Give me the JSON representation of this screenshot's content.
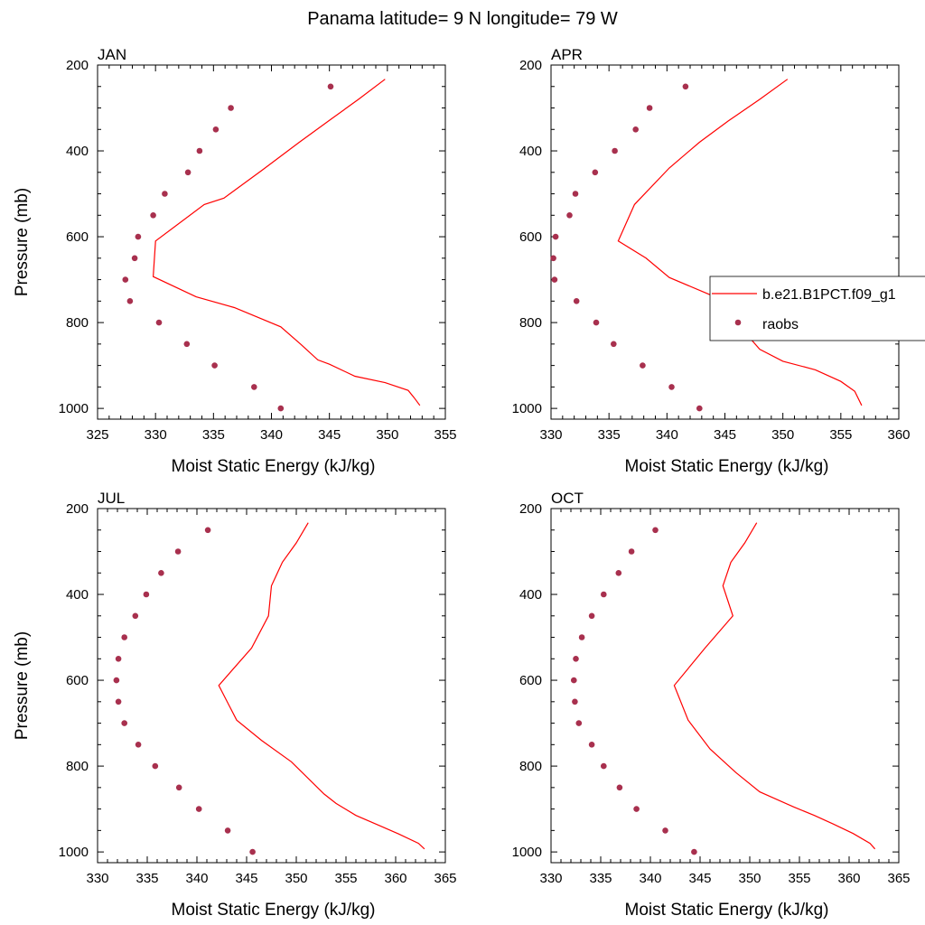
{
  "figure": {
    "title": "Panama  latitude= 9 N longitude= 79 W"
  },
  "legend": {
    "entries": [
      {
        "label": "b.e21.B1PCT.f09_g1",
        "kind": "line",
        "color": "#ff0000"
      },
      {
        "label": "raobs",
        "kind": "marker",
        "color": "#a8304e"
      }
    ]
  },
  "chart_data": [
    {
      "type": "line",
      "panel": "JAN",
      "xlabel": "Moist Static Energy (kJ/kg)",
      "ylabel": "Pressure (mb)",
      "xlim": [
        325,
        355
      ],
      "ylim": [
        200,
        1025
      ],
      "y_inverted": true,
      "xticks": [
        325,
        330,
        335,
        340,
        345,
        350,
        355
      ],
      "yticks": [
        200,
        400,
        600,
        800,
        1000
      ],
      "series": [
        {
          "name": "b.e21.B1PCT.f09_g1",
          "style": "line",
          "color": "#ff0000",
          "points": [
            [
              349.8,
              233
            ],
            [
              347.5,
              280
            ],
            [
              345.2,
              325
            ],
            [
              342.4,
              380
            ],
            [
              339.2,
              445
            ],
            [
              335.9,
              510
            ],
            [
              334.2,
              525
            ],
            [
              330.0,
              610
            ],
            [
              329.8,
              693
            ],
            [
              333.5,
              740
            ],
            [
              336.8,
              765
            ],
            [
              340.8,
              810
            ],
            [
              342.5,
              850
            ],
            [
              344.0,
              887
            ],
            [
              345.0,
              897
            ],
            [
              347.2,
              925
            ],
            [
              349.8,
              940
            ],
            [
              351.8,
              958
            ],
            [
              352.3,
              975
            ],
            [
              352.8,
              993
            ]
          ]
        },
        {
          "name": "raobs",
          "style": "marker",
          "color": "#a8304e",
          "points": [
            [
              345.1,
              250
            ],
            [
              336.5,
              300
            ],
            [
              335.2,
              350
            ],
            [
              333.8,
              400
            ],
            [
              332.8,
              450
            ],
            [
              330.8,
              500
            ],
            [
              329.8,
              550
            ],
            [
              328.5,
              600
            ],
            [
              328.2,
              650
            ],
            [
              327.4,
              700
            ],
            [
              327.8,
              750
            ],
            [
              330.3,
              800
            ],
            [
              332.7,
              850
            ],
            [
              335.1,
              900
            ],
            [
              338.5,
              950
            ],
            [
              340.8,
              1000
            ]
          ]
        }
      ]
    },
    {
      "type": "line",
      "panel": "APR",
      "xlabel": "Moist Static Energy (kJ/kg)",
      "ylabel": "",
      "xlim": [
        330,
        360
      ],
      "ylim": [
        200,
        1025
      ],
      "y_inverted": true,
      "xticks": [
        330,
        335,
        340,
        345,
        350,
        355,
        360
      ],
      "yticks": [
        200,
        400,
        600,
        800,
        1000
      ],
      "series": [
        {
          "name": "b.e21.B1PCT.f09_g1",
          "style": "line",
          "color": "#ff0000",
          "points": [
            [
              350.4,
              233
            ],
            [
              348.0,
              280
            ],
            [
              345.3,
              330
            ],
            [
              342.8,
              380
            ],
            [
              340.2,
              440
            ],
            [
              337.9,
              505
            ],
            [
              337.2,
              525
            ],
            [
              335.8,
              610
            ],
            [
              338.2,
              650
            ],
            [
              340.2,
              695
            ],
            [
              343.7,
              735
            ],
            [
              345.2,
              760
            ],
            [
              346.3,
              810
            ],
            [
              348.0,
              862
            ],
            [
              350.0,
              890
            ],
            [
              352.8,
              910
            ],
            [
              355.0,
              937
            ],
            [
              356.2,
              960
            ],
            [
              356.8,
              993
            ]
          ]
        },
        {
          "name": "raobs",
          "style": "marker",
          "color": "#a8304e",
          "points": [
            [
              341.6,
              250
            ],
            [
              338.5,
              300
            ],
            [
              337.3,
              350
            ],
            [
              335.5,
              400
            ],
            [
              333.8,
              450
            ],
            [
              332.1,
              500
            ],
            [
              331.6,
              550
            ],
            [
              330.4,
              600
            ],
            [
              330.2,
              650
            ],
            [
              330.3,
              700
            ],
            [
              332.2,
              750
            ],
            [
              333.9,
              800
            ],
            [
              335.4,
              850
            ],
            [
              337.9,
              900
            ],
            [
              340.4,
              950
            ],
            [
              342.8,
              1000
            ]
          ]
        }
      ]
    },
    {
      "type": "line",
      "panel": "JUL",
      "xlabel": "Moist Static Energy (kJ/kg)",
      "ylabel": "Pressure (mb)",
      "xlim": [
        330,
        365
      ],
      "ylim": [
        200,
        1025
      ],
      "y_inverted": true,
      "xticks": [
        330,
        335,
        340,
        345,
        350,
        355,
        360,
        365
      ],
      "yticks": [
        200,
        400,
        600,
        800,
        1000
      ],
      "series": [
        {
          "name": "b.e21.B1PCT.f09_g1",
          "style": "line",
          "color": "#ff0000",
          "points": [
            [
              351.2,
              233
            ],
            [
              350.0,
              280
            ],
            [
              348.6,
              325
            ],
            [
              347.5,
              380
            ],
            [
              347.2,
              450
            ],
            [
              345.5,
              525
            ],
            [
              342.2,
              612
            ],
            [
              344.0,
              693
            ],
            [
              346.5,
              740
            ],
            [
              349.5,
              790
            ],
            [
              352.8,
              865
            ],
            [
              354.0,
              887
            ],
            [
              356.0,
              915
            ],
            [
              358.5,
              940
            ],
            [
              360.3,
              958
            ],
            [
              362.3,
              980
            ],
            [
              362.9,
              993
            ]
          ]
        },
        {
          "name": "raobs",
          "style": "marker",
          "color": "#a8304e",
          "points": [
            [
              341.1,
              250
            ],
            [
              338.1,
              300
            ],
            [
              336.4,
              350
            ],
            [
              334.9,
              400
            ],
            [
              333.8,
              450
            ],
            [
              332.7,
              500
            ],
            [
              332.1,
              550
            ],
            [
              331.9,
              600
            ],
            [
              332.1,
              650
            ],
            [
              332.7,
              700
            ],
            [
              334.1,
              750
            ],
            [
              335.8,
              800
            ],
            [
              338.2,
              850
            ],
            [
              340.2,
              900
            ],
            [
              343.1,
              950
            ],
            [
              345.6,
              1000
            ]
          ]
        }
      ]
    },
    {
      "type": "line",
      "panel": "OCT",
      "xlabel": "Moist Static Energy (kJ/kg)",
      "ylabel": "",
      "xlim": [
        330,
        365
      ],
      "ylim": [
        200,
        1025
      ],
      "y_inverted": true,
      "xticks": [
        330,
        335,
        340,
        345,
        350,
        355,
        360,
        365
      ],
      "yticks": [
        200,
        400,
        600,
        800,
        1000
      ],
      "series": [
        {
          "name": "b.e21.B1PCT.f09_g1",
          "style": "line",
          "color": "#ff0000",
          "points": [
            [
              350.7,
              233
            ],
            [
              349.5,
              280
            ],
            [
              348.1,
              325
            ],
            [
              347.3,
              380
            ],
            [
              348.3,
              450
            ],
            [
              345.5,
              525
            ],
            [
              342.4,
              612
            ],
            [
              343.8,
              693
            ],
            [
              346.0,
              760
            ],
            [
              348.6,
              815
            ],
            [
              351.0,
              860
            ],
            [
              354.4,
              895
            ],
            [
              356.5,
              915
            ],
            [
              358.4,
              935
            ],
            [
              360.4,
              957
            ],
            [
              362.1,
              980
            ],
            [
              362.6,
              993
            ]
          ]
        },
        {
          "name": "raobs",
          "style": "marker",
          "color": "#a8304e",
          "points": [
            [
              340.5,
              250
            ],
            [
              338.1,
              300
            ],
            [
              336.8,
              350
            ],
            [
              335.3,
              400
            ],
            [
              334.1,
              450
            ],
            [
              333.1,
              500
            ],
            [
              332.5,
              550
            ],
            [
              332.3,
              600
            ],
            [
              332.4,
              650
            ],
            [
              332.8,
              700
            ],
            [
              334.1,
              750
            ],
            [
              335.3,
              800
            ],
            [
              336.9,
              850
            ],
            [
              338.6,
              900
            ],
            [
              341.5,
              950
            ],
            [
              344.4,
              1000
            ]
          ]
        }
      ]
    }
  ]
}
